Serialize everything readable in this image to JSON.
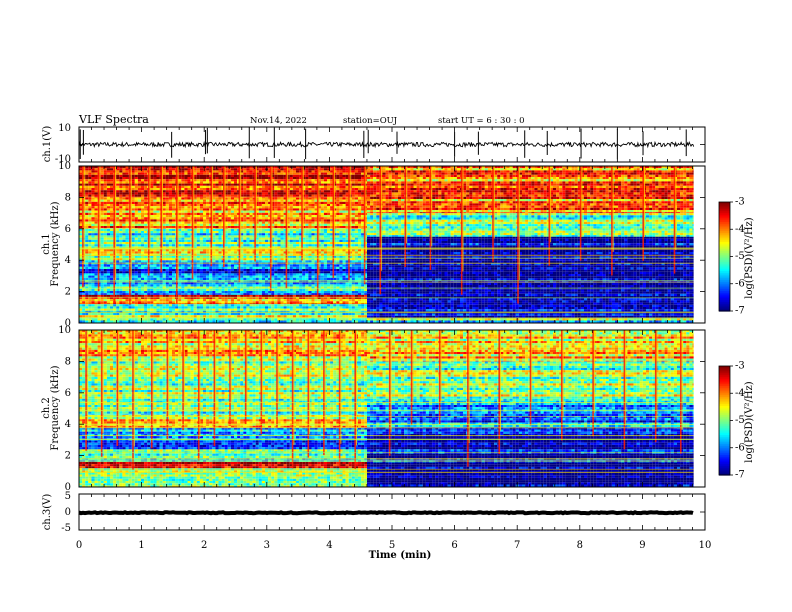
{
  "header": {
    "title": "VLF Spectra",
    "date": "Nov.14, 2022",
    "station": "station=OUJ",
    "start_time": "start  UT =  6 : 30 : 0"
  },
  "chart_data": [
    {
      "type": "line",
      "name": "ch1-waveform",
      "ylabel": "ch.1(V)",
      "ylim": [
        -10,
        10
      ],
      "ytick_labels": [
        "10",
        "-10"
      ],
      "x_range_min": [
        0,
        9.82
      ],
      "baseline_v": 0,
      "noise_amplitude_v": 2.5,
      "spike_times_min": [
        0.02,
        0.07,
        1.48,
        2.02,
        2.05,
        2.72,
        3.12,
        3.62,
        4.55,
        4.62,
        5.08,
        6.0,
        6.38,
        7.12,
        7.48,
        8.02,
        8.6,
        9.01,
        9.7
      ]
    },
    {
      "type": "heatmap",
      "name": "ch1-spectrogram",
      "ylabel": "ch.1\nFrequency (kHz)",
      "ylabel_channel": "ch.1",
      "ylabel_axis": "Frequency (kHz)",
      "xlim": [
        0,
        9.82
      ],
      "ylim": [
        0,
        10
      ],
      "ytick_labels": [
        "0",
        "2",
        "4",
        "6",
        "8",
        "10"
      ],
      "color_scale": {
        "min": -7,
        "max": -3,
        "label": "log(PSD)(V²/Hz)",
        "tick_labels": [
          "-3",
          "-4",
          "-5",
          "-6",
          "-7"
        ]
      },
      "regime_change_min": 4.6,
      "segments": [
        {
          "t_range_min": [
            0,
            4.6
          ],
          "bands": [
            {
              "f_khz": [
                0,
                0.3
              ],
              "log_psd": -5.2
            },
            {
              "f_khz": [
                0.3,
                1.2
              ],
              "log_psd": -5.0
            },
            {
              "f_khz": [
                1.2,
                1.8
              ],
              "log_psd": -3.8
            },
            {
              "f_khz": [
                1.8,
                2.6
              ],
              "log_psd": -5.6
            },
            {
              "f_khz": [
                2.6,
                4.0
              ],
              "log_psd": -6.2
            },
            {
              "f_khz": [
                4.0,
                4.7
              ],
              "log_psd": -4.8
            },
            {
              "f_khz": [
                4.7,
                6.0
              ],
              "log_psd": -5.2
            },
            {
              "f_khz": [
                6.0,
                8.0
              ],
              "log_psd": -4.2
            },
            {
              "f_khz": [
                8.0,
                10.0
              ],
              "log_psd": -3.5
            }
          ]
        },
        {
          "t_range_min": [
            4.6,
            9.82
          ],
          "bands": [
            {
              "f_khz": [
                0,
                0.3
              ],
              "log_psd": -5.2
            },
            {
              "f_khz": [
                0.3,
                5.5
              ],
              "log_psd": -6.8
            },
            {
              "f_khz": [
                5.5,
                7.0
              ],
              "log_psd": -5.0
            },
            {
              "f_khz": [
                7.0,
                10.0
              ],
              "log_psd": -4.0
            }
          ]
        }
      ],
      "spheric_times_min": [
        0.05,
        0.3,
        0.55,
        0.8,
        1.1,
        1.3,
        1.55,
        1.8,
        2.1,
        2.3,
        2.55,
        2.8,
        3.05,
        3.3,
        3.55,
        3.8,
        4.05,
        4.3,
        4.55,
        4.8,
        5.2,
        5.6,
        6.1,
        6.6,
        7.0,
        7.5,
        8.0,
        8.5,
        9.0,
        9.5
      ]
    },
    {
      "type": "heatmap",
      "name": "ch2-spectrogram",
      "ylabel": "ch.2\nFrequency (kHz)",
      "ylabel_channel": "ch.2",
      "ylabel_axis": "Frequency (kHz)",
      "xlim": [
        0,
        9.82
      ],
      "ylim": [
        0,
        10
      ],
      "ytick_labels": [
        "0",
        "2",
        "4",
        "6",
        "8",
        "10"
      ],
      "color_scale": {
        "min": -7,
        "max": -3,
        "label": "log(PSD)(V²/Hz)",
        "tick_labels": [
          "-3",
          "-4",
          "-5",
          "-6",
          "-7"
        ]
      },
      "regime_change_min": 4.6,
      "segments": [
        {
          "t_range_min": [
            0,
            4.6
          ],
          "bands": [
            {
              "f_khz": [
                0,
                0.8
              ],
              "log_psd": -5.0
            },
            {
              "f_khz": [
                0.8,
                1.2
              ],
              "log_psd": -4.6
            },
            {
              "f_khz": [
                1.2,
                1.6
              ],
              "log_psd": -3.6
            },
            {
              "f_khz": [
                1.6,
                2.4
              ],
              "log_psd": -5.4
            },
            {
              "f_khz": [
                2.4,
                3.8
              ],
              "log_psd": -6.0
            },
            {
              "f_khz": [
                3.8,
                4.6
              ],
              "log_psd": -4.4
            },
            {
              "f_khz": [
                4.6,
                5.5
              ],
              "log_psd": -5.3
            },
            {
              "f_khz": [
                5.5,
                8.0
              ],
              "log_psd": -4.9
            },
            {
              "f_khz": [
                8.0,
                10.0
              ],
              "log_psd": -4.5
            }
          ]
        },
        {
          "t_range_min": [
            4.6,
            9.82
          ],
          "bands": [
            {
              "f_khz": [
                0,
                3.8
              ],
              "log_psd": -6.8
            },
            {
              "f_khz": [
                3.8,
                5.5
              ],
              "log_psd": -6.0
            },
            {
              "f_khz": [
                5.5,
                8.0
              ],
              "log_psd": -5.0
            },
            {
              "f_khz": [
                8.0,
                10.0
              ],
              "log_psd": -4.4
            }
          ]
        }
      ],
      "spheric_times_min": [
        0.1,
        0.35,
        0.6,
        0.85,
        1.15,
        1.4,
        1.65,
        1.9,
        2.15,
        2.4,
        2.65,
        2.9,
        3.15,
        3.4,
        3.65,
        3.9,
        4.15,
        4.4,
        4.95,
        5.3,
        5.75,
        6.2,
        6.7,
        7.2,
        7.7,
        8.2,
        8.7,
        9.2,
        9.6
      ]
    },
    {
      "type": "line",
      "name": "ch3-waveform",
      "ylabel": "ch.3(V)",
      "ylim": [
        -5,
        5
      ],
      "ytick_labels": [
        "5",
        "0",
        "-5"
      ],
      "x_range_min": [
        0,
        9.82
      ],
      "baseline_v": -0.2,
      "noise_amplitude_v": 0.25
    }
  ],
  "x_axis": {
    "label": "Time  (min)",
    "range_min": [
      0,
      10
    ],
    "tick_labels": [
      "0",
      "1",
      "2",
      "3",
      "4",
      "5",
      "6",
      "7",
      "8",
      "9",
      "10"
    ]
  },
  "colors": {
    "axis": "#000000",
    "background": "#ffffff"
  }
}
